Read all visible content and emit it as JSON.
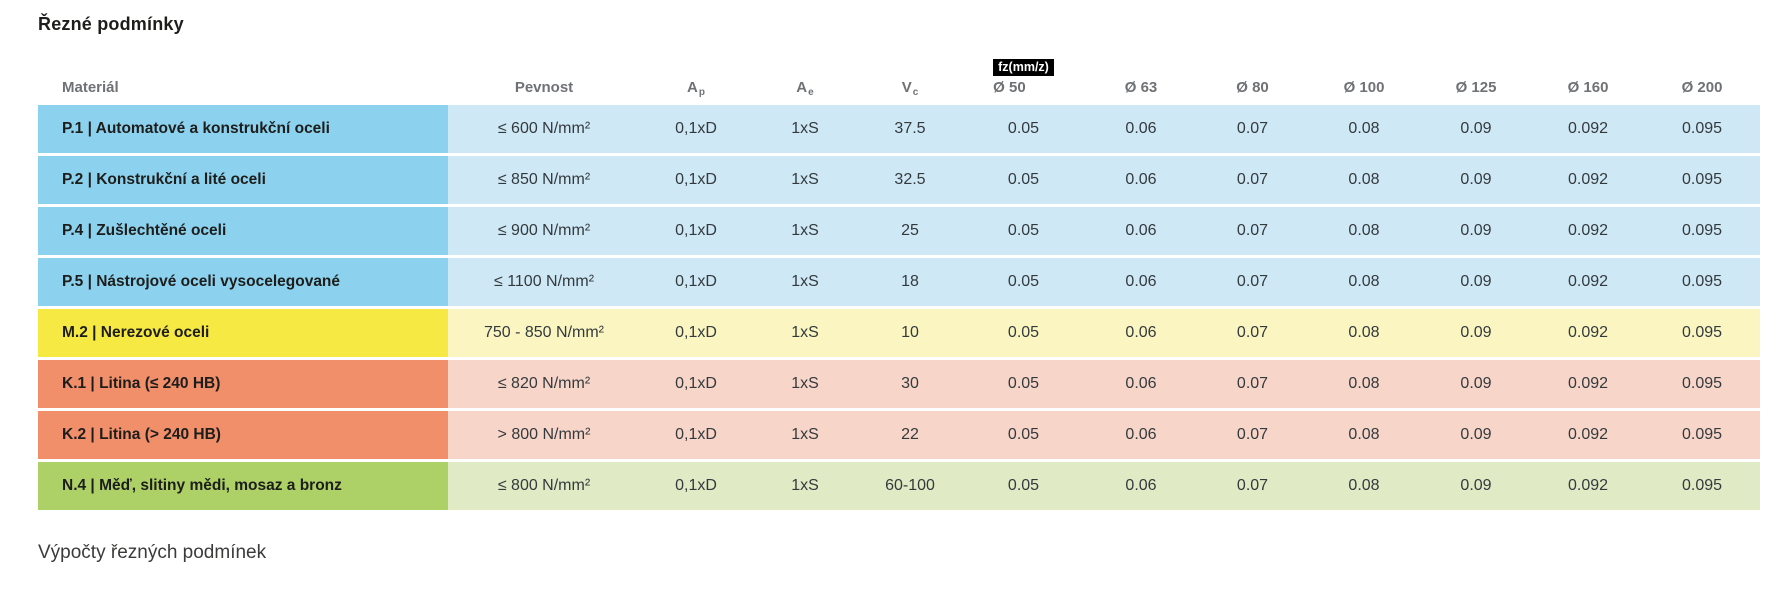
{
  "page": {
    "title": "Řezné podmínky",
    "footer_heading": "Výpočty řezných podmínek"
  },
  "table": {
    "headers": {
      "material": "Materiál",
      "pevnost": "Pevnost",
      "ap_base": "A",
      "ap_sub": "p",
      "ae_base": "A",
      "ae_sub": "e",
      "vc_base": "V",
      "vc_sub": "c",
      "fz_badge": "fz(mm/z)",
      "diameters": [
        "Ø 50",
        "Ø 63",
        "Ø 80",
        "Ø 100",
        "Ø 125",
        "Ø 160",
        "Ø 200"
      ]
    },
    "rows": [
      {
        "material": "P.1 | Automatové a konstrukční oceli",
        "pevnost": "≤ 600 N/mm²",
        "ap": "0,1xD",
        "ae": "1xS",
        "vc": "37.5",
        "fz": [
          "0.05",
          "0.06",
          "0.07",
          "0.08",
          "0.09",
          "0.092",
          "0.095"
        ],
        "theme": "blue"
      },
      {
        "material": "P.2 | Konstrukční a lité oceli",
        "pevnost": "≤ 850 N/mm²",
        "ap": "0,1xD",
        "ae": "1xS",
        "vc": "32.5",
        "fz": [
          "0.05",
          "0.06",
          "0.07",
          "0.08",
          "0.09",
          "0.092",
          "0.095"
        ],
        "theme": "blue"
      },
      {
        "material": "P.4 | Zušlechtěné oceli",
        "pevnost": "≤ 900 N/mm²",
        "ap": "0,1xD",
        "ae": "1xS",
        "vc": "25",
        "fz": [
          "0.05",
          "0.06",
          "0.07",
          "0.08",
          "0.09",
          "0.092",
          "0.095"
        ],
        "theme": "blue"
      },
      {
        "material": "P.5 | Nástrojové oceli vysocelegované",
        "pevnost": "≤ 1100 N/mm²",
        "ap": "0,1xD",
        "ae": "1xS",
        "vc": "18",
        "fz": [
          "0.05",
          "0.06",
          "0.07",
          "0.08",
          "0.09",
          "0.092",
          "0.095"
        ],
        "theme": "blue"
      },
      {
        "material": "M.2 | Nerezové oceli",
        "pevnost": "750 - 850 N/mm²",
        "ap": "0,1xD",
        "ae": "1xS",
        "vc": "10",
        "fz": [
          "0.05",
          "0.06",
          "0.07",
          "0.08",
          "0.09",
          "0.092",
          "0.095"
        ],
        "theme": "yellow"
      },
      {
        "material": "K.1 | Litina (≤ 240 HB)",
        "pevnost": "≤ 820 N/mm²",
        "ap": "0,1xD",
        "ae": "1xS",
        "vc": "30",
        "fz": [
          "0.05",
          "0.06",
          "0.07",
          "0.08",
          "0.09",
          "0.092",
          "0.095"
        ],
        "theme": "salmon"
      },
      {
        "material": "K.2 | Litina (> 240 HB)",
        "pevnost": "> 800 N/mm²",
        "ap": "0,1xD",
        "ae": "1xS",
        "vc": "22",
        "fz": [
          "0.05",
          "0.06",
          "0.07",
          "0.08",
          "0.09",
          "0.092",
          "0.095"
        ],
        "theme": "salmon"
      },
      {
        "material": "N.4 | Měď, slitiny mědi, mosaz a bronz",
        "pevnost": "≤ 800 N/mm²",
        "ap": "0,1xD",
        "ae": "1xS",
        "vc": "60-100",
        "fz": [
          "0.05",
          "0.06",
          "0.07",
          "0.08",
          "0.09",
          "0.092",
          "0.095"
        ],
        "theme": "green"
      }
    ],
    "colors": {
      "blue_strong": "#8CD2EF",
      "blue_pale": "#CFE8F5",
      "yellow_strong": "#F6E943",
      "yellow_pale": "#FBF6C1",
      "salmon_strong": "#F18F6B",
      "salmon_pale": "#F8D5C9",
      "green_strong": "#ADD166",
      "green_pale": "#E0EBC5",
      "badge_bg": "#000000",
      "badge_text": "#FFFFFF",
      "header_text": "#6F7275"
    }
  }
}
